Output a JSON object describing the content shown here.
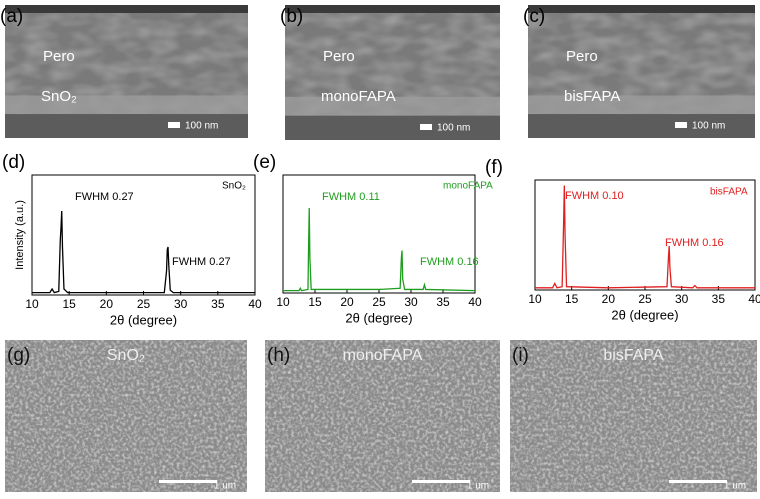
{
  "cross_sections": [
    {
      "label": "(a)",
      "layer_top": "Pero",
      "layer_bottom": "SnO₂",
      "scale": "100 nm"
    },
    {
      "label": "(b)",
      "layer_top": "Pero",
      "layer_bottom": "monoFAPA",
      "scale": "100 nm"
    },
    {
      "label": "(c)",
      "layer_top": "Pero",
      "layer_bottom": "bisFAPA",
      "scale": "100 nm"
    }
  ],
  "top_views": [
    {
      "label": "(g)",
      "sample": "SnO₂",
      "scale": "1 um"
    },
    {
      "label": "(h)",
      "sample": "monoFAPA",
      "scale": "1 um"
    },
    {
      "label": "(i)",
      "sample": "bisFAPA",
      "scale": "1 um"
    }
  ],
  "chart_data": [
    {
      "type": "line",
      "panel_label": "(d)",
      "xlabel": "2θ (degree)",
      "ylabel": "Intensity (a.u.)",
      "xlim": [
        10,
        40
      ],
      "xticks": [
        10,
        15,
        20,
        25,
        30,
        35,
        40
      ],
      "ylim": [
        0,
        100
      ],
      "annotations": [
        "FWHM 0.27",
        "FWHM 0.27"
      ],
      "x": [
        10,
        12.4,
        12.7,
        13.0,
        13.6,
        13.8,
        13.9,
        14.0,
        14.1,
        14.3,
        14.8,
        20,
        27.8,
        28.1,
        28.2,
        28.3,
        28.4,
        28.6,
        29.0,
        40
      ],
      "series": [
        {
          "name": "SnO₂",
          "color": "#000000",
          "values": [
            2,
            2,
            5,
            2,
            3,
            45,
            56,
            70,
            40,
            5,
            2,
            2,
            2,
            20,
            38,
            40,
            25,
            4,
            2,
            2
          ]
        }
      ]
    },
    {
      "type": "line",
      "panel_label": "(e)",
      "xlabel": "2θ (degree)",
      "xlim": [
        10,
        40
      ],
      "xticks": [
        10,
        15,
        20,
        25,
        30,
        35,
        40
      ],
      "ylim": [
        0,
        100
      ],
      "annotations": [
        "FWHM 0.11",
        "FWHM 0.16"
      ],
      "x": [
        10,
        12.5,
        12.7,
        12.9,
        13.9,
        14.0,
        14.1,
        14.2,
        14.4,
        20,
        25,
        28.3,
        28.5,
        28.6,
        28.7,
        29.0,
        31.9,
        32.1,
        32.3,
        40
      ],
      "series": [
        {
          "name": "monoFAPA",
          "color": "#1e9e1e",
          "values": [
            2,
            2,
            4,
            2,
            3,
            40,
            72,
            30,
            3,
            3,
            3,
            4,
            30,
            36,
            12,
            3,
            3,
            7,
            3,
            2
          ]
        }
      ]
    },
    {
      "type": "line",
      "panel_label": "(f)",
      "xlabel": "2θ (degree)",
      "xlim": [
        10,
        40
      ],
      "xticks": [
        10,
        15,
        20,
        25,
        30,
        35,
        40
      ],
      "ylim": [
        0,
        100
      ],
      "annotations": [
        "FWHM 0.10",
        "FWHM 0.16"
      ],
      "x": [
        10,
        12.4,
        12.7,
        13.0,
        13.7,
        13.9,
        14.0,
        14.1,
        14.3,
        20,
        28.0,
        28.2,
        28.3,
        28.4,
        28.6,
        31.5,
        31.8,
        32.1,
        40
      ],
      "series": [
        {
          "name": "bisFAPA",
          "color": "#e02020",
          "values": [
            2,
            2,
            6,
            2,
            3,
            60,
            95,
            50,
            3,
            2,
            3,
            30,
            40,
            20,
            3,
            2,
            4,
            2,
            2
          ]
        }
      ]
    }
  ]
}
